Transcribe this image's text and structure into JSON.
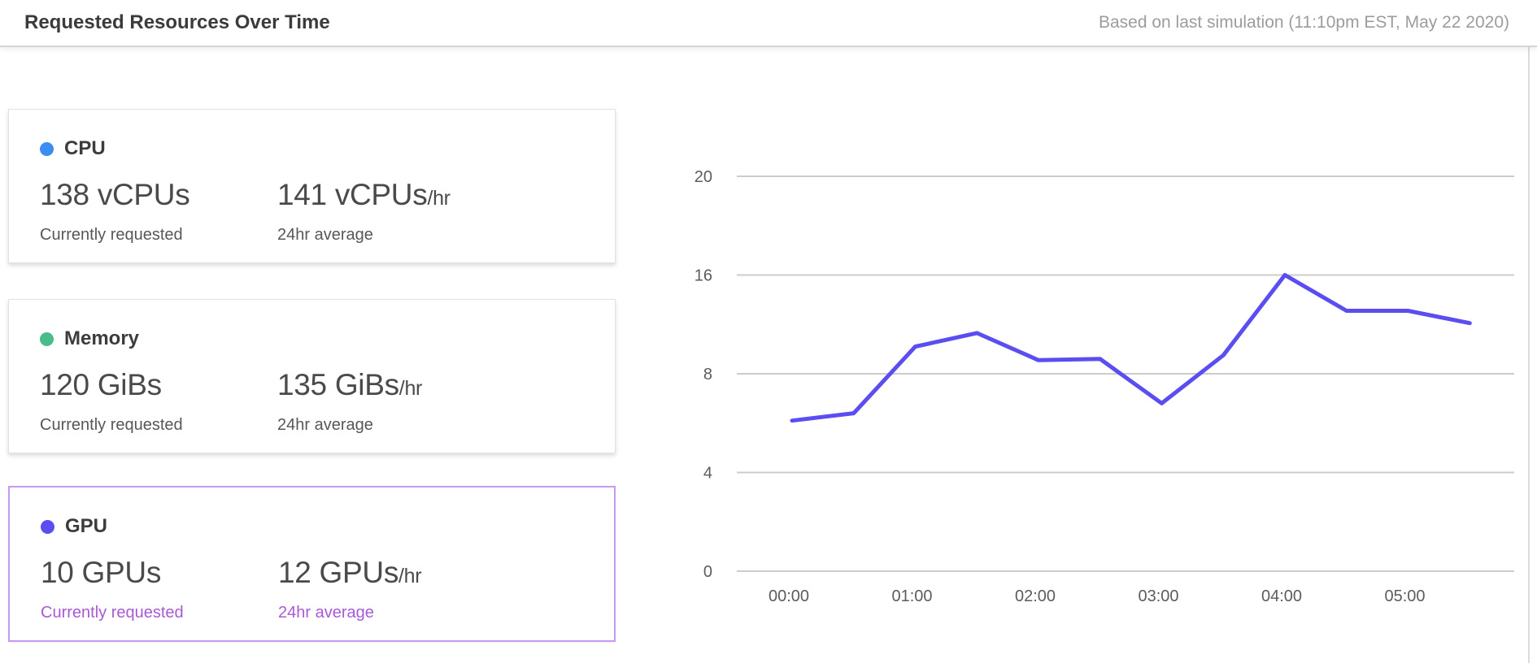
{
  "header": {
    "title": "Requested Resources Over Time",
    "last_updated": "Based on last simulation (11:10pm EST, May 22 2020)"
  },
  "cards": [
    {
      "label": "CPU",
      "color": "#3b8df2",
      "current_value": "138 vCPUs",
      "current_caption": "Currently requested",
      "average_value": "141 vCPUs",
      "average_suffix": "/hr",
      "average_caption": "24hr average",
      "selected": false
    },
    {
      "label": "Memory",
      "color": "#48bd89",
      "current_value": "120 GiBs",
      "current_caption": "Currently requested",
      "average_value": "135 GiBs",
      "average_suffix": "/hr",
      "average_caption": "24hr average",
      "selected": false
    },
    {
      "label": "GPU",
      "color": "#5a4ef0",
      "current_value": "10 GPUs",
      "current_caption": "Currently requested",
      "average_value": "12 GPUs",
      "average_suffix": "/hr",
      "average_caption": "24hr average",
      "selected": true
    }
  ],
  "colors": {
    "cpu_dot": "#3b8df2",
    "memory_dot": "#48bd89",
    "gpu_dot": "#5a4ef0",
    "selected_border": "#c49bf0",
    "selected_caption": "#a85ad4",
    "line": "#5a4ef0",
    "gridline": "#cccccc",
    "axis_text": "#5c5c5c"
  },
  "chart_data": {
    "type": "line",
    "title": "",
    "xlabel": "",
    "ylabel": "",
    "series": [
      {
        "name": "GPU",
        "x": [
          "00:00",
          "00:30",
          "01:00",
          "01:30",
          "02:00",
          "02:30",
          "03:00",
          "03:30",
          "04:00",
          "04:30",
          "05:00",
          "05:30"
        ],
        "values": [
          6.1,
          6.4,
          10.2,
          11.3,
          9.1,
          9.2,
          6.8,
          9.5,
          16,
          13.1,
          13.1,
          12.1
        ]
      }
    ],
    "y_ticks": [
      20,
      16,
      8,
      4,
      0
    ],
    "x_ticks": [
      "00:00",
      "01:00",
      "02:00",
      "03:00",
      "04:00",
      "05:00"
    ],
    "ylim": [
      0,
      20
    ],
    "grid": "horizontal",
    "legend_position": "none",
    "line_color": "#5a4ef0"
  }
}
